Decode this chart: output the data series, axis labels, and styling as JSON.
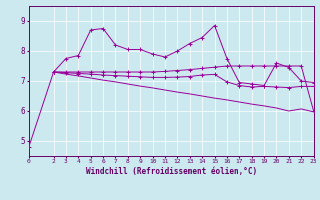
{
  "xlabel": "Windchill (Refroidissement éolien,°C)",
  "x_ticks": [
    0,
    2,
    3,
    4,
    5,
    6,
    7,
    8,
    9,
    10,
    11,
    12,
    13,
    14,
    15,
    16,
    17,
    18,
    19,
    20,
    21,
    22,
    23
  ],
  "ylim": [
    4.5,
    9.5
  ],
  "xlim": [
    0,
    23
  ],
  "yticks": [
    5,
    6,
    7,
    8,
    9
  ],
  "bg_color": "#cce9f0",
  "line_color": "#990099",
  "spine_color": "#660066",
  "grid_color": "#aadddd",
  "series": [
    {
      "x": [
        0,
        2,
        3,
        4,
        5,
        6,
        7,
        8,
        9,
        10,
        11,
        12,
        13,
        14,
        15,
        16,
        17,
        18,
        19,
        20,
        21,
        22,
        23
      ],
      "y": [
        4.8,
        7.3,
        7.75,
        7.85,
        8.7,
        8.75,
        8.2,
        8.05,
        8.05,
        7.9,
        7.8,
        8.0,
        8.25,
        8.45,
        8.85,
        7.75,
        6.95,
        6.9,
        6.85,
        7.6,
        7.45,
        7.0,
        6.95
      ],
      "marker": true
    },
    {
      "x": [
        2,
        3,
        4,
        5,
        6,
        7,
        8,
        9,
        10,
        11,
        12,
        13,
        14,
        15,
        16,
        17,
        18,
        19,
        20,
        21,
        22,
        23
      ],
      "y": [
        7.3,
        7.3,
        7.3,
        7.3,
        7.3,
        7.3,
        7.3,
        7.3,
        7.3,
        7.32,
        7.35,
        7.38,
        7.42,
        7.46,
        7.5,
        7.5,
        7.5,
        7.5,
        7.5,
        7.5,
        7.5,
        6.0
      ],
      "marker": true
    },
    {
      "x": [
        2,
        3,
        4,
        5,
        6,
        7,
        8,
        9,
        10,
        11,
        12,
        13,
        14,
        15,
        16,
        17,
        18,
        19,
        20,
        21,
        22,
        23
      ],
      "y": [
        7.3,
        7.23,
        7.17,
        7.1,
        7.03,
        6.97,
        6.9,
        6.83,
        6.77,
        6.7,
        6.63,
        6.57,
        6.5,
        6.43,
        6.37,
        6.3,
        6.23,
        6.17,
        6.1,
        6.0,
        6.07,
        5.97
      ],
      "marker": false
    },
    {
      "x": [
        2,
        3,
        4,
        5,
        6,
        7,
        8,
        9,
        10,
        11,
        12,
        13,
        14,
        15,
        16,
        17,
        18,
        19,
        20,
        21,
        22,
        23
      ],
      "y": [
        7.3,
        7.28,
        7.25,
        7.23,
        7.2,
        7.18,
        7.16,
        7.14,
        7.12,
        7.12,
        7.13,
        7.15,
        7.2,
        7.22,
        6.97,
        6.85,
        6.8,
        6.82,
        6.8,
        6.78,
        6.82,
        6.82
      ],
      "marker": true
    }
  ]
}
